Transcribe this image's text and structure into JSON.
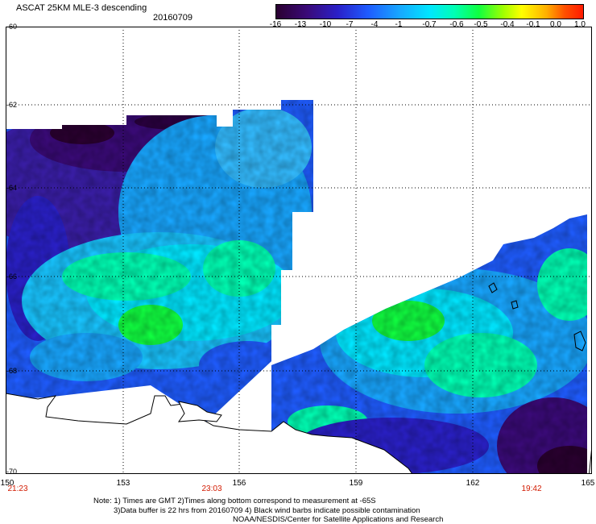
{
  "header": {
    "title": "ASCAT 25KM MLE-3 descending",
    "date": "20160709"
  },
  "colorbar": {
    "ticks": [
      "-16",
      "-13",
      "-10",
      "-7",
      "-4",
      "-1",
      "-0.7",
      "-0.6",
      "-0.5",
      "-0.4",
      "-0.1",
      "0.0",
      "1.0"
    ],
    "colors": [
      "#2a0030",
      "#3a0a78",
      "#2a20c8",
      "#1f5cff",
      "#18a6ff",
      "#00e6ff",
      "#00ffb4",
      "#10ff40",
      "#a0ff00",
      "#ffff00",
      "#ffb000",
      "#ff5000",
      "#ff1a00"
    ]
  },
  "map": {
    "longitude_ticks": [
      "150",
      "153",
      "156",
      "159",
      "162",
      "165"
    ],
    "latitude_ticks": [
      "-60",
      "-62",
      "-64",
      "-66",
      "-68",
      "-70"
    ],
    "time_labels": [
      "21:23",
      "23:03",
      "19:42"
    ],
    "coastline_color": "#000000",
    "land_color": "#ffffff"
  },
  "notes": {
    "line1": "Note: 1) Times are GMT 2)Times along bottom correspond to measurement at -65S",
    "line2": "3)Data buffer is 22 hrs from 20160709 4) Black wind barbs indicate possible contamination",
    "line3": "NOAA/NESDIS/Center for Satellite Applications and Research"
  }
}
